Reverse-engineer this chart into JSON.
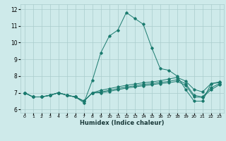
{
  "xlabel": "Humidex (Indice chaleur)",
  "xlim": [
    -0.5,
    23.5
  ],
  "ylim": [
    5.8,
    12.3
  ],
  "yticks": [
    6,
    7,
    8,
    9,
    10,
    11,
    12
  ],
  "xticks": [
    0,
    1,
    2,
    3,
    4,
    5,
    6,
    7,
    8,
    9,
    10,
    11,
    12,
    13,
    14,
    15,
    16,
    17,
    18,
    19,
    20,
    21,
    22,
    23
  ],
  "bg_color": "#ceeaea",
  "grid_color": "#aacccc",
  "line_color": "#1a7a6e",
  "lines": [
    [
      7.0,
      6.75,
      6.75,
      6.85,
      7.0,
      6.85,
      6.75,
      6.4,
      7.75,
      9.4,
      10.4,
      10.75,
      11.8,
      11.45,
      11.1,
      9.7,
      8.45,
      8.35,
      8.0,
      7.2,
      6.5,
      6.5,
      7.55,
      7.6
    ],
    [
      7.0,
      6.75,
      6.75,
      6.85,
      7.0,
      6.85,
      6.75,
      6.5,
      7.0,
      7.15,
      7.25,
      7.35,
      7.45,
      7.52,
      7.6,
      7.65,
      7.72,
      7.82,
      7.92,
      7.7,
      7.2,
      7.05,
      7.55,
      7.65
    ],
    [
      7.0,
      6.75,
      6.75,
      6.85,
      7.0,
      6.85,
      6.75,
      6.5,
      7.0,
      7.05,
      7.15,
      7.25,
      7.35,
      7.42,
      7.5,
      7.55,
      7.62,
      7.68,
      7.78,
      7.55,
      6.85,
      6.75,
      7.3,
      7.55
    ],
    [
      7.0,
      6.75,
      6.75,
      6.85,
      7.0,
      6.85,
      6.75,
      6.5,
      7.0,
      7.0,
      7.08,
      7.18,
      7.28,
      7.35,
      7.42,
      7.48,
      7.55,
      7.6,
      7.68,
      7.45,
      6.75,
      6.72,
      7.18,
      7.48
    ]
  ]
}
